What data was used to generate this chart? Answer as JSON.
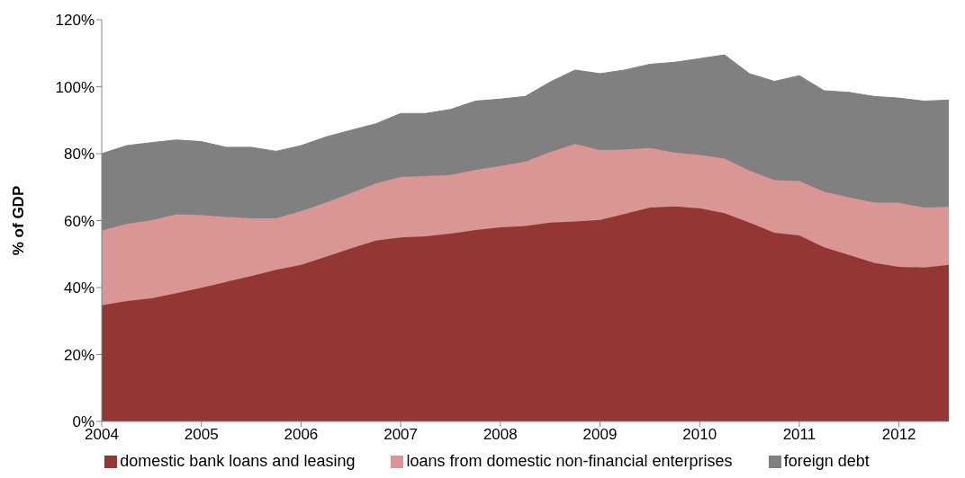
{
  "chart_data": {
    "type": "area",
    "stacked": true,
    "ylabel": "% of GDP",
    "x": [
      2004,
      2004.25,
      2004.5,
      2004.75,
      2005,
      2005.25,
      2005.5,
      2005.75,
      2006,
      2006.25,
      2006.5,
      2006.75,
      2007,
      2007.25,
      2007.5,
      2007.75,
      2008,
      2008.25,
      2008.5,
      2008.75,
      2009,
      2009.25,
      2009.5,
      2009.75,
      2010,
      2010.25,
      2010.5,
      2010.75,
      2011,
      2011.25,
      2011.5,
      2011.75,
      2012,
      2012.25,
      2012.5
    ],
    "xlim": [
      2004,
      2012.5
    ],
    "xticks": [
      2004,
      2005,
      2006,
      2007,
      2008,
      2009,
      2010,
      2011,
      2012
    ],
    "ylim": [
      0,
      120
    ],
    "yticks": [
      {
        "value": 0,
        "label": "0%"
      },
      {
        "value": 20,
        "label": "20%"
      },
      {
        "value": 40,
        "label": "40%"
      },
      {
        "value": 60,
        "label": "60%"
      },
      {
        "value": 80,
        "label": "80%"
      },
      {
        "value": 100,
        "label": "100%"
      },
      {
        "value": 120,
        "label": "120%"
      }
    ],
    "grid": false,
    "legend": "bottom",
    "series": [
      {
        "name": "domestic bank loans and leasing",
        "color": "#943634",
        "values": [
          34.7,
          36.0,
          36.8,
          38.3,
          39.9,
          41.7,
          43.4,
          45.3,
          46.8,
          49.2,
          51.7,
          54.0,
          55.0,
          55.3,
          56.1,
          57.2,
          58.0,
          58.4,
          59.4,
          59.7,
          60.2,
          62.0,
          63.9,
          64.2,
          63.7,
          62.2,
          59.4,
          56.4,
          55.6,
          52.0,
          49.7,
          47.4,
          46.2,
          46.0,
          46.8
        ]
      },
      {
        "name": "loans from domestic non-financial enterprises",
        "color": "#d99694",
        "values": [
          22.3,
          23.0,
          23.3,
          23.6,
          21.7,
          19.4,
          17.3,
          15.4,
          16.0,
          16.2,
          16.5,
          17.1,
          18.0,
          18.0,
          17.5,
          17.9,
          18.3,
          19.2,
          21.1,
          23.2,
          20.8,
          19.2,
          17.8,
          16.1,
          15.9,
          16.3,
          15.5,
          15.7,
          16.2,
          16.6,
          17.2,
          18.0,
          19.1,
          17.9,
          17.3
        ]
      },
      {
        "name": "foreign debt",
        "color": "#808080",
        "values": [
          23.0,
          23.4,
          23.2,
          22.2,
          22.0,
          20.8,
          21.2,
          20.0,
          19.6,
          19.6,
          18.8,
          17.8,
          19.0,
          18.7,
          19.6,
          20.6,
          20.0,
          19.5,
          20.9,
          22.1,
          22.9,
          23.8,
          25.0,
          27.0,
          28.8,
          31.0,
          29.0,
          29.5,
          31.5,
          30.2,
          31.4,
          31.7,
          31.3,
          31.8,
          31.9
        ]
      }
    ]
  }
}
